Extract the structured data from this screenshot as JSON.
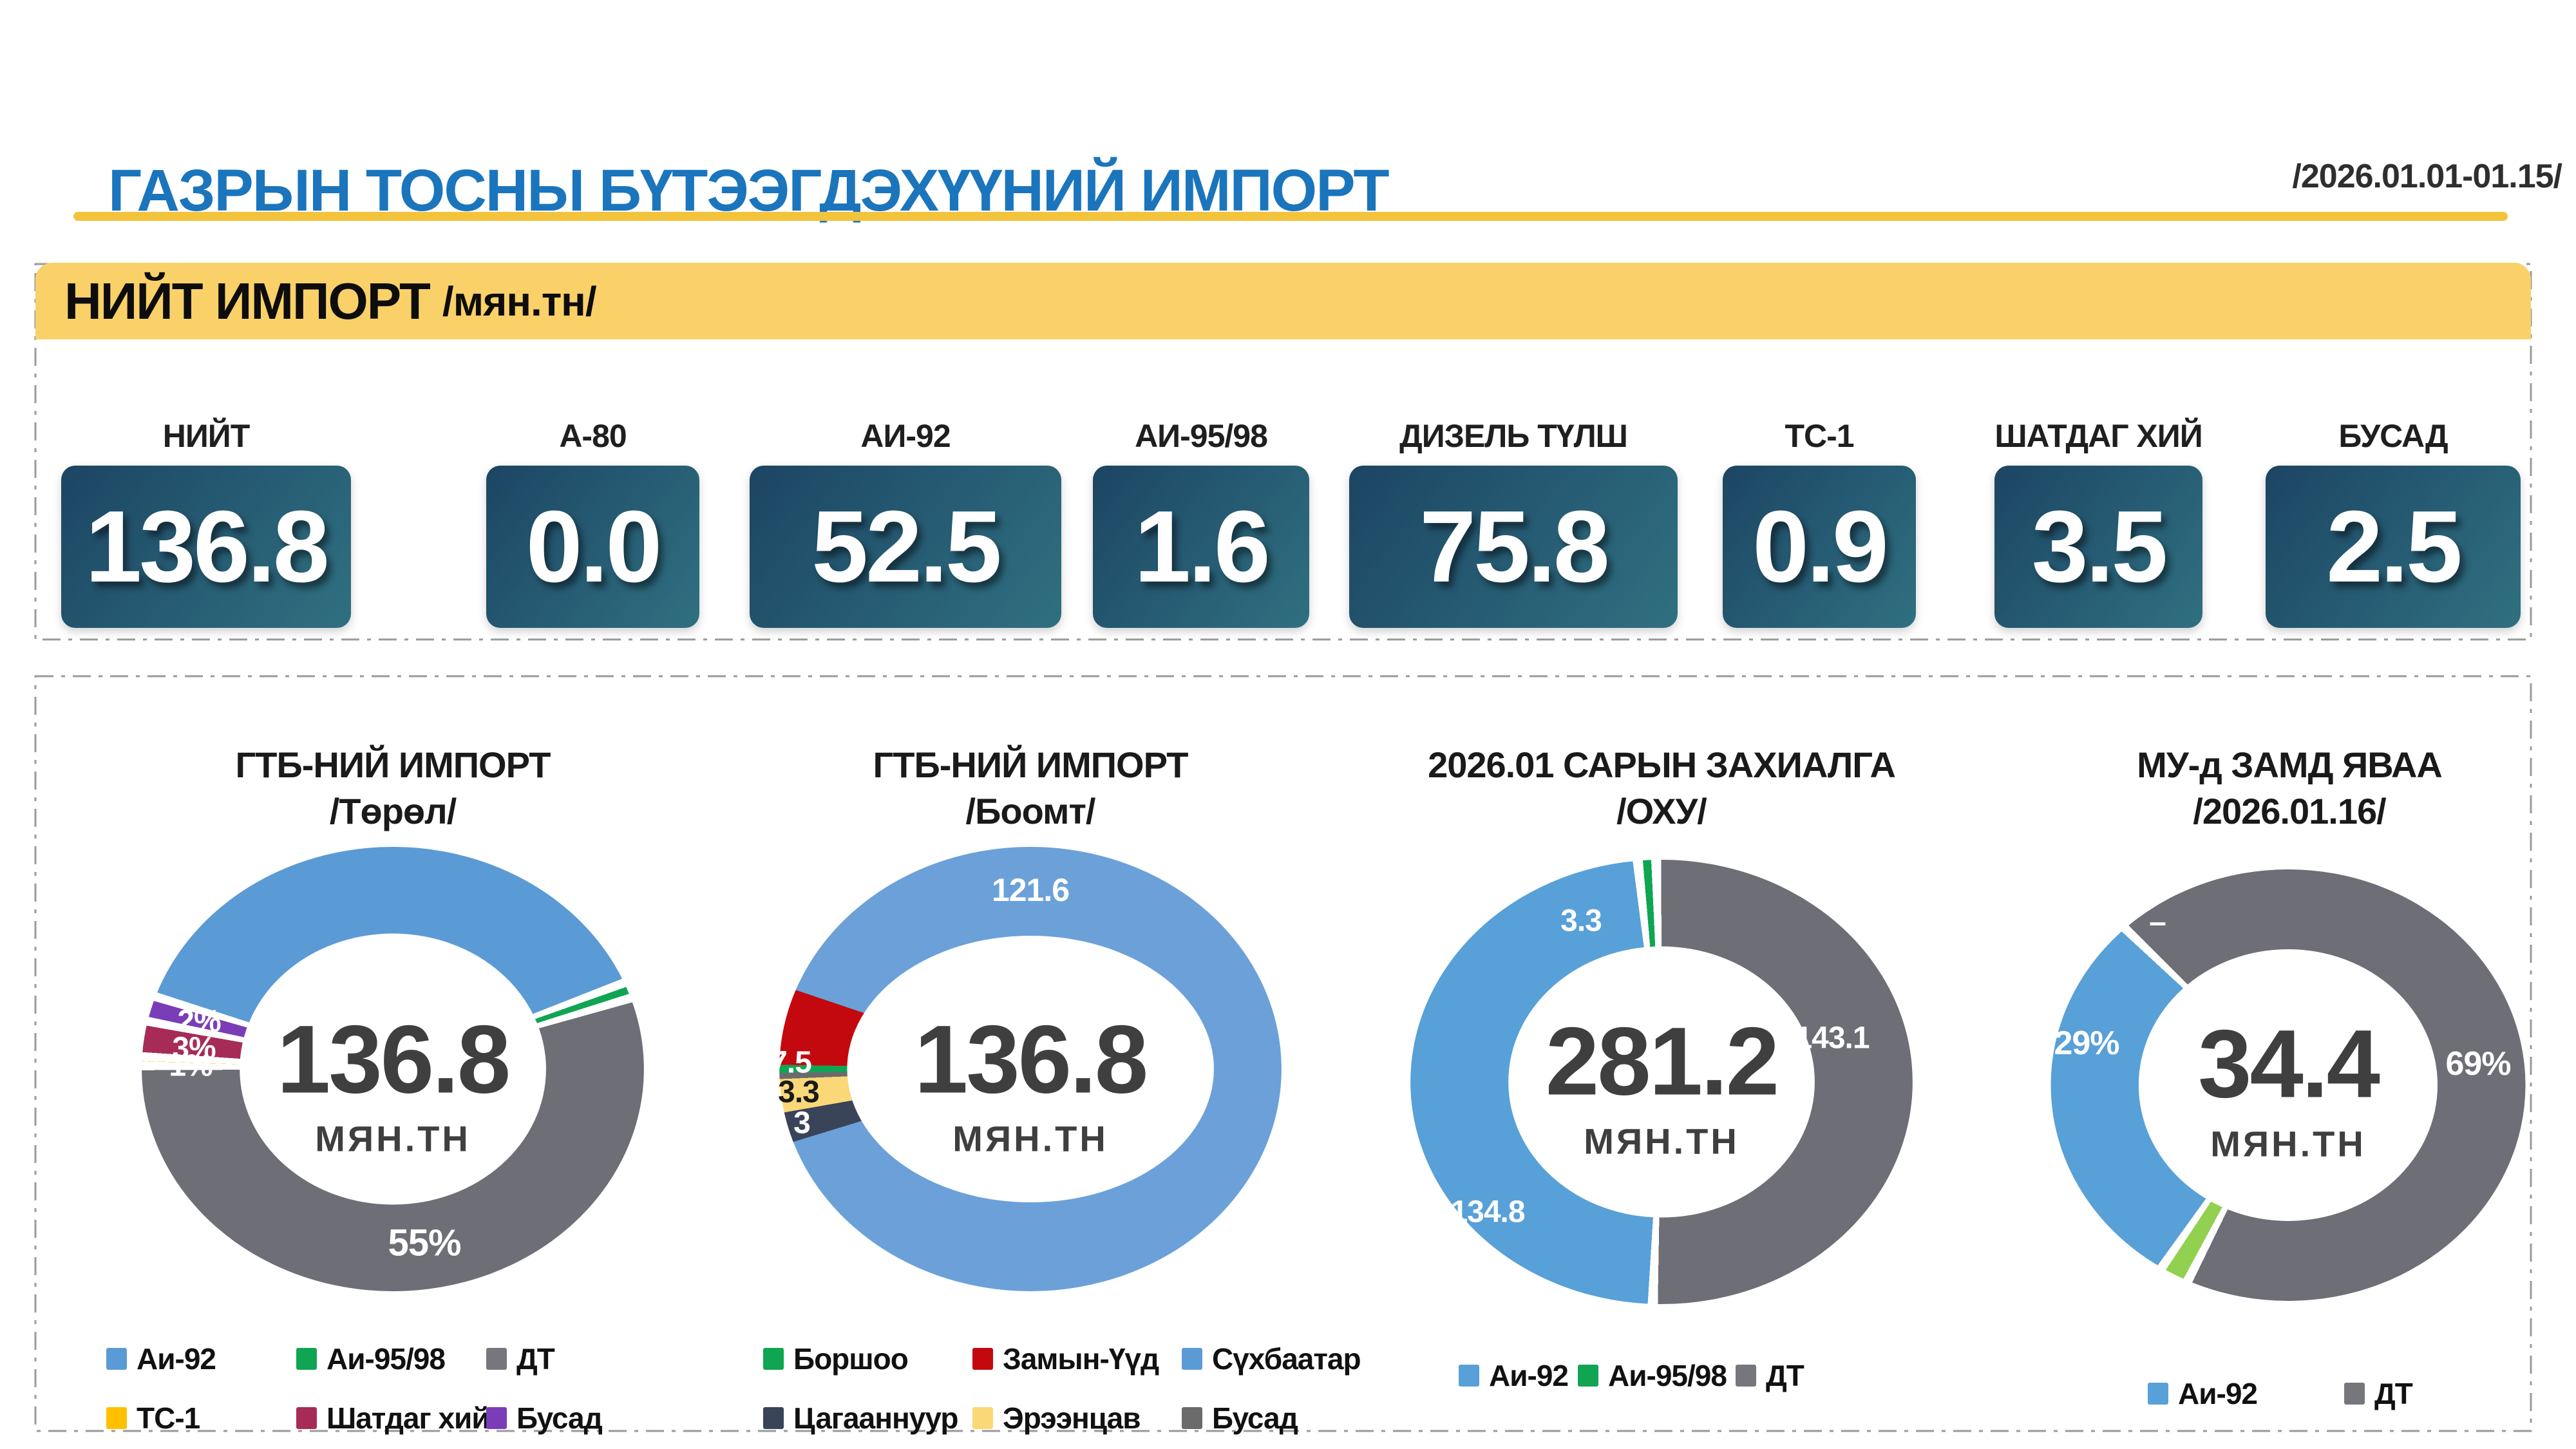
{
  "header": {
    "title": "ГАЗРЫН ТОСНЫ БҮТЭЭГДЭХҮҮНИЙ ИМПОРТ",
    "period": "/2026.01.01-01.15/"
  },
  "banner": {
    "title": "НИЙТ ИМПОРТ",
    "unit": "/мян.тн/"
  },
  "stats": [
    {
      "label": "НИЙТ",
      "value": "136.8"
    },
    {
      "label": "А-80",
      "value": "0.0"
    },
    {
      "label": "АИ-92",
      "value": "52.5"
    },
    {
      "label": "АИ-95/98",
      "value": "1.6"
    },
    {
      "label": "ДИЗЕЛЬ ТҮЛШ",
      "value": "75.8"
    },
    {
      "label": "ТС-1",
      "value": "0.9"
    },
    {
      "label": "ШАТДАГ ХИЙ",
      "value": "3.5"
    },
    {
      "label": "БУСАД",
      "value": "2.5"
    }
  ],
  "colors": {
    "accent_blue": "#1B75BC",
    "banner_yellow": "#FAD169",
    "underline_yellow": "#F4C33C",
    "card_gradient_start": "#1C4563",
    "card_gradient_end": "#2F7080",
    "dash_border": "#9a9a9a"
  },
  "chart_data": [
    {
      "type": "donut",
      "title_line1": "ГТБ-НИЙ ИМПОРТ",
      "title_line2": "/Төрөл/",
      "center_value": "136.8",
      "center_unit": "МЯН.ТН",
      "total": 136.8,
      "start_deg": 289,
      "separators": true,
      "segments": [
        {
          "name": "Аи-92",
          "value": 52.5,
          "color": "#5B9BD5"
        },
        {
          "name": "Аи-95/98",
          "value": 1.6,
          "color": "#0FA553"
        },
        {
          "name": "ДТ",
          "value": 75.8,
          "color": "#6D6E76"
        },
        {
          "name": "ТС-1",
          "value": 0.9,
          "color": "#FFC000"
        },
        {
          "name": "Шатдаг хий",
          "value": 3.5,
          "color": "#A62C57"
        },
        {
          "name": "Бусад",
          "value": 2.5,
          "color": "#7A3DB8"
        }
      ],
      "labels": [
        "2%",
        "3%",
        "1%",
        "55%"
      ],
      "legend": [
        {
          "label": "Аи-92",
          "color": "#5B9BD5"
        },
        {
          "label": "Аи-95/98",
          "color": "#0FA553"
        },
        {
          "label": "ДТ",
          "color": "#76777C"
        },
        {
          "label": "ТС-1",
          "color": "#FFC000"
        },
        {
          "label": "Шатдаг хий",
          "color": "#A62C57"
        },
        {
          "label": "Бусад",
          "color": "#7A3DB8"
        }
      ]
    },
    {
      "type": "donut",
      "title_line1": "ГТБ-НИЙ ИМПОРТ",
      "title_line2": "/Боомт/",
      "center_value": "136.8",
      "center_unit": "МЯН.ТН",
      "total": 136.8,
      "start_deg": 269,
      "separators": false,
      "segments": [
        {
          "name": "Боршоо",
          "value": 0.8,
          "color": "#0FA553"
        },
        {
          "name": "Замын-Үүд",
          "value": 7.5,
          "color": "#C3090E"
        },
        {
          "name": "Сүхбаатар",
          "value": 121.6,
          "color": "#6BA1D8"
        },
        {
          "name": "Цагааннуур",
          "value": 3.0,
          "color": "#3A4459"
        },
        {
          "name": "Эрээнцав",
          "value": 3.3,
          "color": "#FAD878"
        },
        {
          "name": "Бусад",
          "value": 0.6,
          "color": "#6B6B6B"
        }
      ],
      "labels": [
        "121.6",
        "7.5",
        "3.3",
        "3"
      ],
      "legend": [
        {
          "label": "Боршоо",
          "color": "#0FA553"
        },
        {
          "label": "Замын-Үүд",
          "color": "#C3090E"
        },
        {
          "label": "Сүхбаатар",
          "color": "#5B9BD5"
        },
        {
          "label": "Цагааннуур",
          "color": "#3A4459"
        },
        {
          "label": "Эрээнцав",
          "color": "#FAD878"
        },
        {
          "label": "Бусад",
          "color": "#6B6B6B"
        }
      ]
    },
    {
      "type": "donut",
      "title_line1": "2026.01 САРЫН ЗАХИАЛГА",
      "title_line2": "/ОХУ/",
      "center_value": "281.2",
      "center_unit": "МЯН.ТН",
      "total": 281.2,
      "start_deg": 182,
      "separators": true,
      "segments": [
        {
          "name": "Аи-92",
          "value": 134.8,
          "color": "#58A0D8"
        },
        {
          "name": "Аи-95/98",
          "value": 3.3,
          "color": "#0FA553"
        },
        {
          "name": "ДТ",
          "value": 143.1,
          "color": "#6D6E76"
        }
      ],
      "labels": [
        "3.3",
        "143.1",
        "134.8"
      ],
      "legend": [
        {
          "label": "Аи-92",
          "color": "#58A0D8"
        },
        {
          "label": "Аи-95/98",
          "color": "#0FA553"
        },
        {
          "label": "ДТ",
          "color": "#76777C"
        }
      ]
    },
    {
      "type": "donut",
      "title_line1": "МУ-д ЗАМД ЯВАА",
      "title_line2": "/2026.01.16/",
      "center_value": "34.4",
      "center_unit": "МЯН.ТН",
      "total": 100,
      "start_deg": 205,
      "separators": true,
      "segments": [
        {
          "name": "Аи-95/98",
          "value": 2,
          "color": "#92D050"
        },
        {
          "name": "Аи-92",
          "value": 29,
          "color": "#58A0D8"
        },
        {
          "name": "ДТ",
          "value": 69,
          "color": "#6D6E76"
        }
      ],
      "labels": [
        "29%",
        "–",
        "69%"
      ],
      "legend": [
        {
          "label": "Аи-92",
          "color": "#58A0D8"
        },
        {
          "label": "ДТ",
          "color": "#76777C"
        }
      ]
    }
  ]
}
